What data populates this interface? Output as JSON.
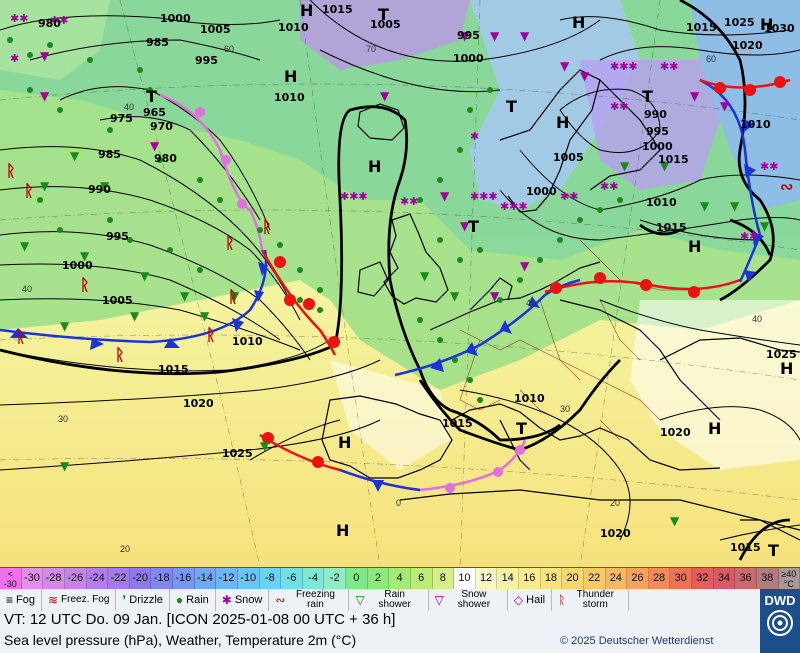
{
  "map": {
    "isobar_labels": [
      "980",
      "1000",
      "1005",
      "1015",
      "1005",
      "1010",
      "985",
      "995",
      "1010",
      "975",
      "965",
      "970",
      "985",
      "980",
      "990",
      "995",
      "1000",
      "1005",
      "1010",
      "1015",
      "1020",
      "1025",
      "1000",
      "995",
      "1015",
      "1025",
      "1020",
      "1030",
      "990",
      "995",
      "1000",
      "1005",
      "1000",
      "1010",
      "1015",
      "1010",
      "1025",
      "1010",
      "1015",
      "1020",
      "1015",
      "1020",
      "1015"
    ],
    "pressure_systems": [
      "H",
      "H",
      "T",
      "H",
      "H",
      "T",
      "T",
      "H",
      "T",
      "H",
      "H",
      "T",
      "H",
      "T",
      "H",
      "H",
      "H",
      "T"
    ],
    "temp_labels": [
      "40",
      "30",
      "20",
      "30",
      "40",
      "60",
      "60",
      "70",
      "40",
      "0",
      "20",
      "40"
    ],
    "colors": {
      "rain": "#1a8a1a",
      "snow": "#a0009a",
      "cold_front": "#1a33dd",
      "warm_front": "#ee1111",
      "occlusion": "#e070e0"
    }
  },
  "colorbar": {
    "cells": [
      "-30",
      "-28",
      "-26",
      "-24",
      "-22",
      "-20",
      "-18",
      "-16",
      "-14",
      "-12",
      "-10",
      "-8",
      "-6",
      "-4",
      "-2",
      "0",
      "2",
      "4",
      "6",
      "8",
      "10",
      "12",
      "14",
      "16",
      "18",
      "20",
      "22",
      "24",
      "26",
      "28",
      "30",
      "32",
      "34",
      "36",
      "38"
    ],
    "low_end": [
      "<",
      "-30"
    ],
    "high_end": [
      "≥40",
      "°C"
    ],
    "colors": [
      "#e090e8",
      "#d08ae8",
      "#c284ea",
      "#b27eec",
      "#a27aee",
      "#8e78f0",
      "#8286f2",
      "#7896f4",
      "#72a6f6",
      "#6cb6f8",
      "#66c6f8",
      "#66d4f2",
      "#70dfe6",
      "#80e6d6",
      "#90ecc4",
      "#7ee88a",
      "#8ee87a",
      "#a6ea76",
      "#bcec76",
      "#d4f086",
      "#ffffff",
      "#f8f8c4",
      "#f6f2a4",
      "#f6ec8e",
      "#f6e47c",
      "#f6d86e",
      "#f6ca66",
      "#f6b860",
      "#f6a25a",
      "#f48a58",
      "#f07058",
      "#e65c5e",
      "#d85a66",
      "#c86a70",
      "#b07c82"
    ],
    "low_color": "#f070f0",
    "high_color": "#a89898"
  },
  "legend": [
    {
      "icon": "fog-icon",
      "glyph": "≡",
      "color": "#000",
      "label": "Fog",
      "two": false
    },
    {
      "icon": "freezing-fog-icon",
      "glyph": "≋",
      "color": "#c00",
      "label": "Freez. Fog",
      "two": true
    },
    {
      "icon": "drizzle-icon",
      "glyph": "❜",
      "color": "#1a8a1a",
      "label": "Drizzle",
      "two": false
    },
    {
      "icon": "rain-icon",
      "glyph": "●",
      "color": "#1a8a1a",
      "label": "Rain",
      "two": false
    },
    {
      "icon": "snow-icon",
      "glyph": "✱",
      "color": "#a0009a",
      "label": "Snow",
      "two": false
    },
    {
      "icon": "freezing-rain-icon",
      "glyph": "∾",
      "color": "#c00",
      "label": "Freezing rain",
      "two": true
    },
    {
      "icon": "rain-shower-icon",
      "glyph": "▽",
      "color": "#1a8a1a",
      "label": "Rain shower",
      "two": true
    },
    {
      "icon": "snow-shower-icon",
      "glyph": "▽",
      "color": "#a0009a",
      "label": "Snow shower",
      "two": true
    },
    {
      "icon": "hail-icon",
      "glyph": "◇",
      "color": "#a0009a",
      "label": "Hail",
      "two": false
    },
    {
      "icon": "thunderstorm-icon",
      "glyph": "ᚱ",
      "color": "#b00",
      "label": "Thunder storm",
      "two": true
    }
  ],
  "info": {
    "valid_time": "VT: 12 UTC Do.  09 Jan. [ICON 2025-01-08  00 UTC + 36 h]",
    "description": "Sea level pressure (hPa), Weather, Temperature 2m (°C)",
    "copyright": "© 2025 Deutscher Wetterdienst",
    "logo_text": "DWD"
  }
}
